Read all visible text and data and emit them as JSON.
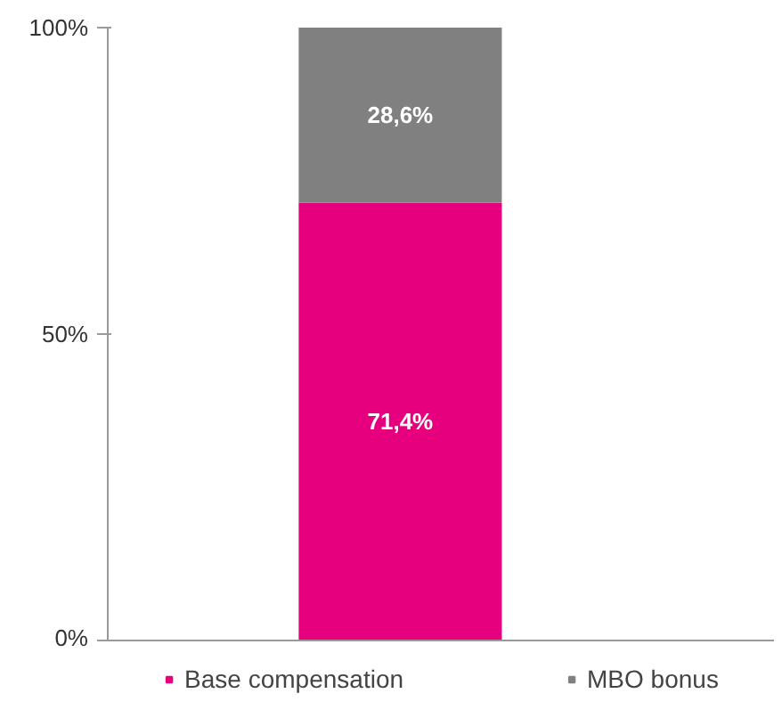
{
  "chart_data": {
    "type": "bar",
    "stacked": true,
    "categories": [
      null
    ],
    "series": [
      {
        "name": "Base compensation",
        "color": "#e6007e",
        "values": [
          71.4
        ],
        "value_labels": [
          "71,4%"
        ]
      },
      {
        "name": "MBO bonus",
        "color": "#808080",
        "values": [
          28.6
        ],
        "value_labels": [
          "28,6%"
        ]
      }
    ],
    "ylim": [
      0,
      100
    ],
    "yticks": [
      {
        "value": 0,
        "label": "0%"
      },
      {
        "value": 50,
        "label": "50%"
      },
      {
        "value": 100,
        "label": "100%"
      }
    ],
    "grid": false,
    "legend": "bottom"
  }
}
